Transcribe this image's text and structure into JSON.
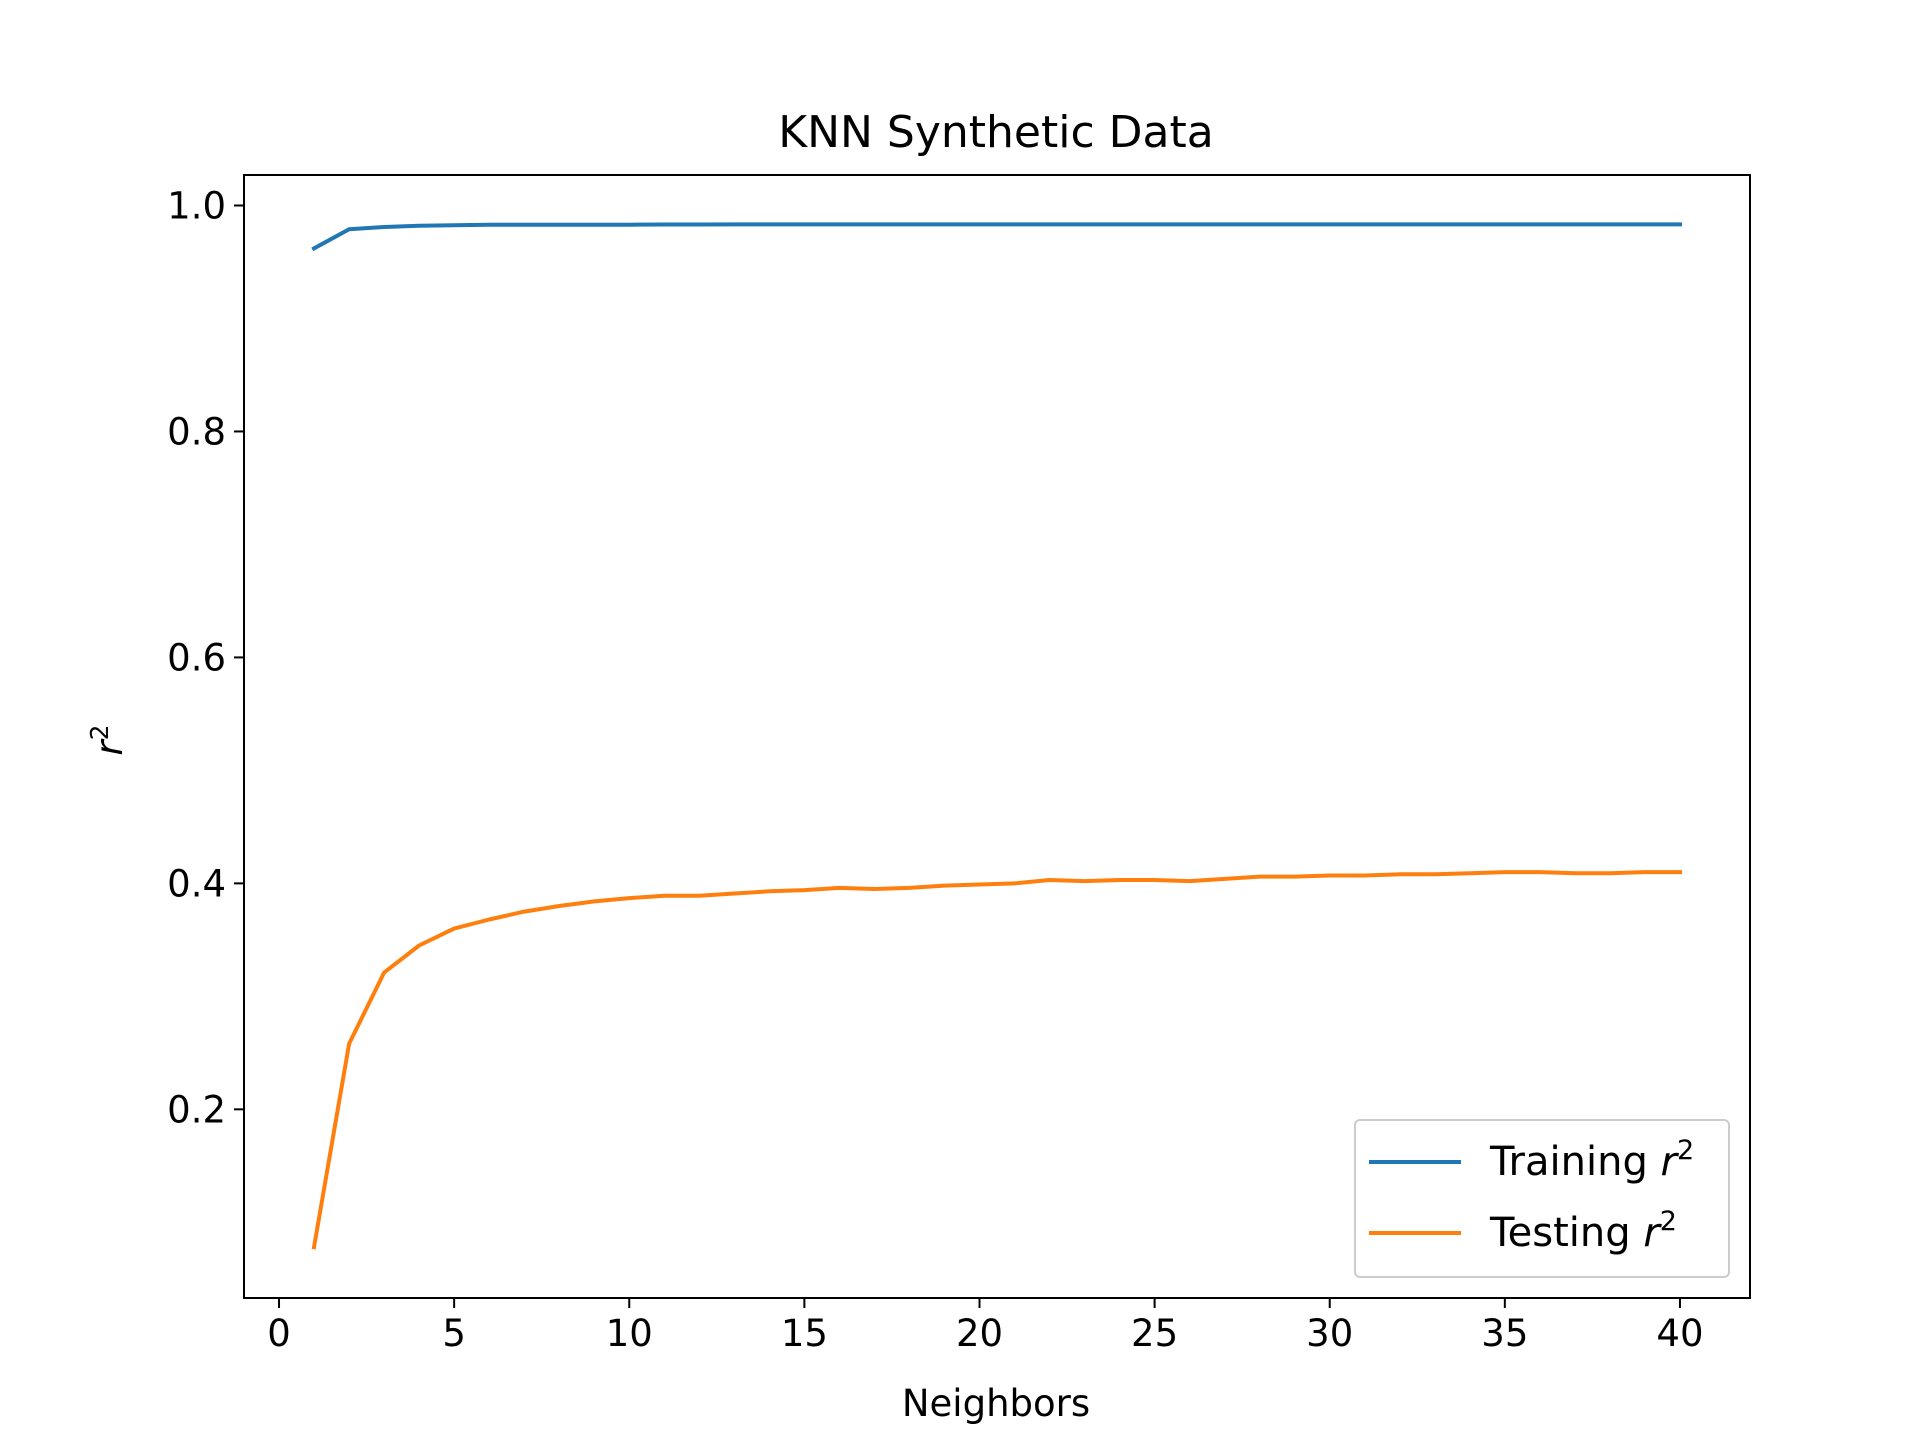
{
  "chart_data": {
    "type": "line",
    "title": "KNN Synthetic Data",
    "xlabel": "Neighbors",
    "ylabel_base": "r",
    "ylabel_sup": "2",
    "xlim": [
      -1,
      42
    ],
    "ylim": [
      0.033,
      1.027
    ],
    "xticks": [
      0,
      5,
      10,
      15,
      20,
      25,
      30,
      35,
      40
    ],
    "yticks": [
      0.2,
      0.4,
      0.6,
      0.8,
      1.0
    ],
    "xtick_labels": [
      "0",
      "5",
      "10",
      "15",
      "20",
      "25",
      "30",
      "35",
      "40"
    ],
    "ytick_labels": [
      "0.2",
      "0.4",
      "0.6",
      "0.8",
      "1.0"
    ],
    "grid": false,
    "legend_position": "lower-right",
    "x": [
      1,
      2,
      3,
      4,
      5,
      6,
      7,
      8,
      9,
      10,
      11,
      12,
      13,
      14,
      15,
      16,
      17,
      18,
      19,
      20,
      21,
      22,
      23,
      24,
      25,
      26,
      27,
      28,
      29,
      30,
      31,
      32,
      33,
      34,
      35,
      36,
      37,
      38,
      39,
      40
    ],
    "series": [
      {
        "label_base": "Training ",
        "label_sup": "2",
        "label_var": "r",
        "color": "#1f77b4",
        "values": [
          0.962,
          0.979,
          0.981,
          0.982,
          0.9825,
          0.983,
          0.983,
          0.983,
          0.983,
          0.983,
          0.9832,
          0.9832,
          0.9833,
          0.9833,
          0.9833,
          0.9833,
          0.9833,
          0.9833,
          0.9833,
          0.9833,
          0.9833,
          0.9833,
          0.9833,
          0.9833,
          0.9833,
          0.9833,
          0.9833,
          0.9833,
          0.9833,
          0.9833,
          0.9833,
          0.9833,
          0.9833,
          0.9833,
          0.9833,
          0.9833,
          0.9833,
          0.9833,
          0.9833,
          0.9833
        ]
      },
      {
        "label_base": "Testing ",
        "label_sup": "2",
        "label_var": "r",
        "color": "#ff7f0e",
        "values": [
          0.078,
          0.258,
          0.321,
          0.345,
          0.36,
          0.368,
          0.375,
          0.38,
          0.384,
          0.387,
          0.389,
          0.389,
          0.391,
          0.393,
          0.394,
          0.396,
          0.395,
          0.396,
          0.398,
          0.399,
          0.4,
          0.403,
          0.402,
          0.403,
          0.403,
          0.402,
          0.404,
          0.406,
          0.406,
          0.407,
          0.407,
          0.408,
          0.408,
          0.409,
          0.41,
          0.41,
          0.409,
          0.409,
          0.41,
          0.41
        ]
      }
    ]
  }
}
